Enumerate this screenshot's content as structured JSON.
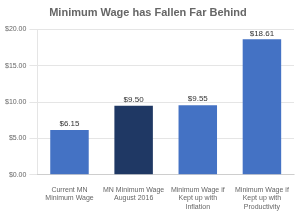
{
  "chart_data": {
    "type": "bar",
    "title": "Minimum Wage has Fallen Far Behind",
    "categories": [
      "Current MN\nMinimum Wage",
      "MN Minimum Wage\nAugust 2016",
      "Minimum Wage if\nKept up with\nInflation",
      "Minimum Wage if\nKept up with\nProductivity"
    ],
    "values": [
      6.15,
      9.5,
      9.55,
      18.61
    ],
    "value_labels": [
      "$6.15",
      "$9.50",
      "$9.55",
      "$18.61"
    ],
    "data_labels": true,
    "colors": [
      "#4472c4",
      "#1f3864",
      "#4472c4",
      "#4472c4"
    ],
    "ylim": [
      0,
      20
    ],
    "yticks": [
      {
        "value": 0,
        "label": "$0.00"
      },
      {
        "value": 5,
        "label": "$5.00"
      },
      {
        "value": 10,
        "label": "$10.00"
      },
      {
        "value": 15,
        "label": "$15.00"
      },
      {
        "value": 20,
        "label": "$20.00"
      }
    ],
    "grid": true
  }
}
